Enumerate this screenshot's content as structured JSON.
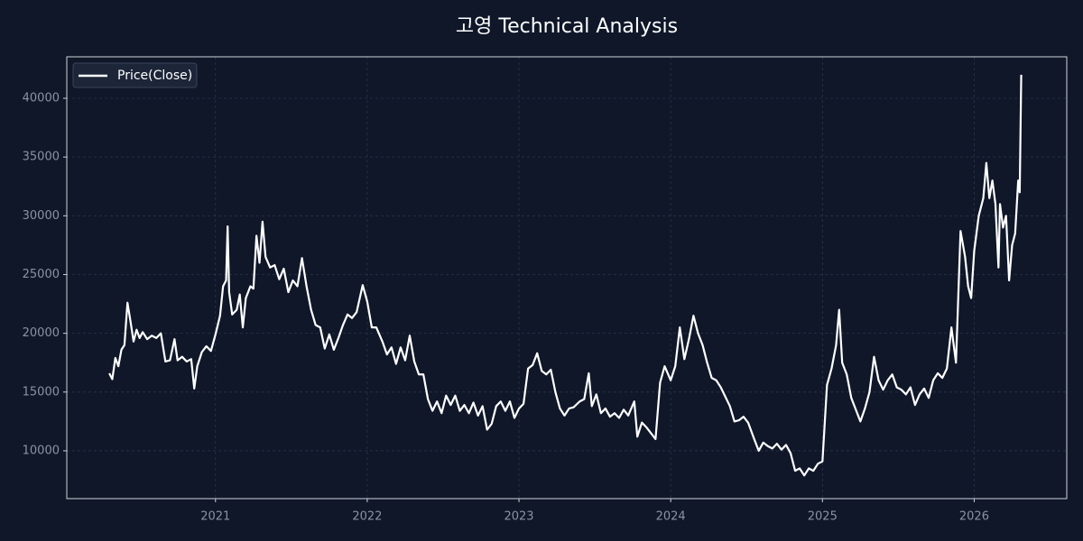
{
  "chart_data": {
    "type": "line",
    "title": "고영 Technical Analysis",
    "x": [
      2020.3,
      2020.32,
      2020.34,
      2020.36,
      2020.38,
      2020.4,
      2020.42,
      2020.44,
      2020.46,
      2020.48,
      2020.5,
      2020.52,
      2020.55,
      2020.58,
      2020.61,
      2020.64,
      2020.67,
      2020.7,
      2020.73,
      2020.75,
      2020.78,
      2020.81,
      2020.84,
      2020.86,
      2020.88,
      2020.91,
      2020.94,
      2020.97,
      2021.0,
      2021.03,
      2021.05,
      2021.07,
      2021.08,
      2021.09,
      2021.11,
      2021.14,
      2021.16,
      2021.18,
      2021.2,
      2021.23,
      2021.25,
      2021.27,
      2021.29,
      2021.31,
      2021.33,
      2021.36,
      2021.39,
      2021.42,
      2021.45,
      2021.48,
      2021.51,
      2021.54,
      2021.57,
      2021.6,
      2021.63,
      2021.66,
      2021.69,
      2021.72,
      2021.75,
      2021.78,
      2021.81,
      2021.84,
      2021.87,
      2021.9,
      2021.93,
      2021.97,
      2022.0,
      2022.03,
      2022.06,
      2022.1,
      2022.13,
      2022.16,
      2022.19,
      2022.22,
      2022.25,
      2022.28,
      2022.31,
      2022.34,
      2022.37,
      2022.4,
      2022.43,
      2022.46,
      2022.49,
      2022.52,
      2022.55,
      2022.58,
      2022.61,
      2022.64,
      2022.67,
      2022.7,
      2022.73,
      2022.76,
      2022.79,
      2022.82,
      2022.85,
      2022.88,
      2022.91,
      2022.94,
      2022.97,
      2023.0,
      2023.03,
      2023.06,
      2023.09,
      2023.12,
      2023.15,
      2023.18,
      2023.21,
      2023.24,
      2023.27,
      2023.3,
      2023.33,
      2023.36,
      2023.4,
      2023.43,
      2023.46,
      2023.48,
      2023.51,
      2023.54,
      2023.57,
      2023.6,
      2023.63,
      2023.66,
      2023.69,
      2023.72,
      2023.76,
      2023.78,
      2023.81,
      2023.84,
      2023.87,
      2023.9,
      2023.93,
      2023.96,
      2024.0,
      2024.03,
      2024.06,
      2024.09,
      2024.12,
      2024.15,
      2024.18,
      2024.21,
      2024.24,
      2024.27,
      2024.3,
      2024.33,
      2024.36,
      2024.39,
      2024.42,
      2024.45,
      2024.48,
      2024.51,
      2024.55,
      2024.58,
      2024.61,
      2024.64,
      2024.67,
      2024.7,
      2024.73,
      2024.76,
      2024.79,
      2024.82,
      2024.85,
      2024.88,
      2024.91,
      2024.94,
      2024.97,
      2025.0,
      2025.03,
      2025.06,
      2025.09,
      2025.11,
      2025.13,
      2025.16,
      2025.19,
      2025.22,
      2025.25,
      2025.28,
      2025.31,
      2025.34,
      2025.37,
      2025.4,
      2025.43,
      2025.46,
      2025.49,
      2025.52,
      2025.55,
      2025.58,
      2025.61,
      2025.64,
      2025.67,
      2025.7,
      2025.73,
      2025.76,
      2025.79,
      2025.82,
      2025.85,
      2025.88,
      2025.91,
      2025.94,
      2025.96,
      2025.98,
      2026.0,
      2026.03,
      2026.06,
      2026.08,
      2026.1,
      2026.12,
      2026.14,
      2026.16,
      2026.17,
      2026.19,
      2026.21,
      2026.23,
      2026.25,
      2026.27,
      2026.29,
      2026.3,
      2026.31
    ],
    "series": [
      {
        "name": "Price(Close)",
        "color": "#ffffff",
        "values": [
          16600,
          16100,
          17900,
          17200,
          18600,
          19000,
          22600,
          21000,
          19300,
          20300,
          19600,
          20100,
          19500,
          19800,
          19600,
          20000,
          17600,
          17700,
          19500,
          17700,
          18000,
          17600,
          17800,
          15300,
          17200,
          18400,
          18900,
          18500,
          19900,
          21500,
          24000,
          24500,
          29100,
          23500,
          21600,
          22000,
          23300,
          20500,
          23000,
          24000,
          23800,
          28300,
          26000,
          29500,
          26500,
          25600,
          25800,
          24600,
          25500,
          23500,
          24500,
          24000,
          26400,
          24000,
          22000,
          20700,
          20500,
          18700,
          19900,
          18600,
          19600,
          20700,
          21600,
          21300,
          21800,
          24100,
          22700,
          20500,
          20500,
          19300,
          18200,
          18800,
          17400,
          18800,
          17700,
          19800,
          17600,
          16500,
          16500,
          14400,
          13400,
          14200,
          13200,
          14700,
          13900,
          14700,
          13400,
          13900,
          13200,
          14100,
          13000,
          13800,
          11800,
          12300,
          13800,
          14200,
          13400,
          14200,
          12800,
          13600,
          14000,
          17000,
          17300,
          18300,
          16800,
          16500,
          16900,
          15000,
          13600,
          13000,
          13600,
          13700,
          14200,
          14400,
          16600,
          13800,
          14800,
          13200,
          13600,
          12900,
          13200,
          12800,
          13500,
          13000,
          14200,
          11200,
          12400,
          12000,
          11500,
          11000,
          15800,
          17200,
          16000,
          17200,
          20500,
          17800,
          19500,
          21500,
          20000,
          19000,
          17500,
          16200,
          16000,
          15400,
          14600,
          13800,
          12500,
          12600,
          12900,
          12400,
          11000,
          10000,
          10700,
          10400,
          10200,
          10600,
          10100,
          10500,
          9800,
          8300,
          8500,
          7900,
          8500,
          8300,
          8900,
          9100,
          15600,
          17000,
          19000,
          22000,
          17500,
          16500,
          14500,
          13500,
          12500,
          13600,
          15000,
          18000,
          16000,
          15200,
          16000,
          16500,
          15400,
          15200,
          14800,
          15400,
          13900,
          14800,
          15300,
          14500,
          16000,
          16600,
          16200,
          17000,
          20500,
          17500,
          28700,
          26500,
          24000,
          23000,
          27000,
          30000,
          31500,
          34500,
          31500,
          33000,
          31000,
          25600,
          31000,
          29000,
          30000,
          24500,
          27500,
          28500,
          33000,
          32000,
          42000
        ]
      }
    ],
    "xlim": [
      2020.02,
      2026.61
    ],
    "xticks": [
      2021,
      2022,
      2023,
      2024,
      2025,
      2026
    ],
    "ylim": [
      5930,
      43530
    ],
    "yticks": [
      10000,
      15000,
      20000,
      25000,
      30000,
      35000,
      40000
    ],
    "grid": true,
    "legend": "upper left"
  }
}
